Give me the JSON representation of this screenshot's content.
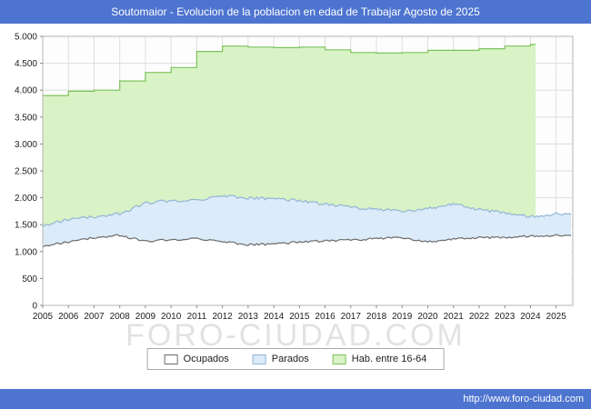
{
  "header": {
    "title": "Soutomaior - Evolucion de la poblacion en edad de Trabajar Agosto de 2025"
  },
  "footer": {
    "url": "http://www.foro-ciudad.com"
  },
  "watermark": "FORO-CIUDAD.COM",
  "colors": {
    "header_bg": "#4d74cf",
    "footer_bg": "#4d74cf",
    "grid": "#dedede",
    "plot_border": "#b5b5b5",
    "axis_text": "#222222",
    "hab_fill": "#d9f2c6",
    "hab_stroke": "#7dc35c",
    "parados_fill": "#dcebf9",
    "parados_stroke": "#93b5d5",
    "ocupados_fill": "#ffffff",
    "ocupados_stroke": "#6b6b6b"
  },
  "legend": {
    "items": [
      {
        "label": "Ocupados",
        "fill": "#ffffff",
        "stroke": "#6b6b6b"
      },
      {
        "label": "Parados",
        "fill": "#dcebf9",
        "stroke": "#93b5d5"
      },
      {
        "label": "Hab. entre 16-64",
        "fill": "#d9f2c6",
        "stroke": "#7dc35c"
      }
    ]
  },
  "chart_data": {
    "type": "area",
    "title": "Soutomaior - Evolucion de la poblacion en edad de Trabajar Agosto de 2025",
    "ylabel": "",
    "xlabel": "",
    "ylim": [
      0,
      5000
    ],
    "ytick_step": 500,
    "x_start": 2005.0,
    "x_end": 2025.65,
    "x_years": [
      2005,
      2006,
      2007,
      2008,
      2009,
      2010,
      2011,
      2012,
      2013,
      2014,
      2015,
      2016,
      2017,
      2018,
      2019,
      2020,
      2021,
      2022,
      2023,
      2024,
      2025
    ],
    "legend_position": "bottom",
    "grid": true,
    "series": [
      {
        "name": "Hab. entre 16-64",
        "style": "step",
        "end_x": 2024.2,
        "noise": 0,
        "values": [
          3900,
          3980,
          4000,
          4170,
          4330,
          4420,
          4720,
          4820,
          4800,
          4790,
          4800,
          4750,
          4700,
          4690,
          4700,
          4740,
          4740,
          4770,
          4820,
          4850
        ]
      },
      {
        "name": "Parados",
        "style": "monthly",
        "noise": 50,
        "values": [
          1480,
          1600,
          1650,
          1700,
          1900,
          1950,
          1950,
          2030,
          2000,
          1980,
          1950,
          1880,
          1820,
          1780,
          1750,
          1800,
          1880,
          1780,
          1720,
          1650,
          1700
        ]
      },
      {
        "name": "Ocupados",
        "style": "monthly",
        "noise": 36,
        "values": [
          1100,
          1180,
          1260,
          1300,
          1190,
          1220,
          1240,
          1180,
          1130,
          1140,
          1180,
          1200,
          1210,
          1240,
          1260,
          1180,
          1230,
          1260,
          1260,
          1290,
          1300
        ]
      }
    ]
  }
}
